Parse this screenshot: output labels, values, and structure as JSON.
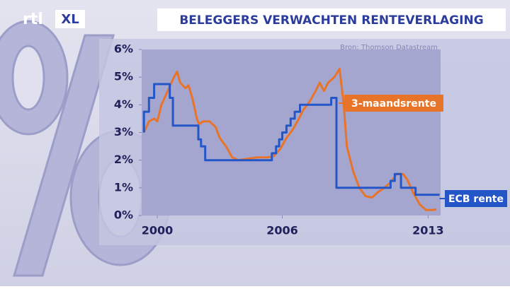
{
  "logo": {
    "left": "rtl",
    "right": "XL"
  },
  "chart_data": {
    "type": "line",
    "title": "BELEGGERS VERWACHTEN RENTEVERLAGING",
    "source": "Bron: Thomson Datastream",
    "xlim": [
      1999.25,
      2013.6
    ],
    "xticks": [
      2000,
      2006,
      2013
    ],
    "ylim": [
      0,
      6
    ],
    "yticks": [
      {
        "value": 0,
        "label": "0%"
      },
      {
        "value": 1,
        "label": "1%"
      },
      {
        "value": 2,
        "label": "2%"
      },
      {
        "value": 3,
        "label": "3%"
      },
      {
        "value": 4,
        "label": "4%"
      },
      {
        "value": 5,
        "label": "5%"
      },
      {
        "value": 6,
        "label": "6%"
      }
    ],
    "series": [
      {
        "name": "3-maandsrente",
        "color": "#e8742a",
        "x": [
          1999.36,
          1999.6,
          1999.85,
          2000.0,
          2000.2,
          2000.5,
          2000.8,
          2000.95,
          2001.1,
          2001.35,
          2001.5,
          2001.7,
          2001.9,
          2002.0,
          2002.2,
          2002.5,
          2002.8,
          2003.0,
          2003.3,
          2003.6,
          2003.9,
          2004.3,
          2004.8,
          2005.3,
          2005.6,
          2005.9,
          2006.2,
          2006.5,
          2006.8,
          2007.0,
          2007.3,
          2007.6,
          2007.8,
          2008.0,
          2008.2,
          2008.5,
          2008.75,
          2008.95,
          2009.1,
          2009.4,
          2009.7,
          2010.0,
          2010.3,
          2010.6,
          2010.9,
          2011.2,
          2011.5,
          2011.8,
          2012.0,
          2012.3,
          2012.6,
          2012.9,
          2013.2,
          2013.4
        ],
        "values": [
          3.0,
          3.4,
          3.5,
          3.4,
          4.0,
          4.5,
          5.0,
          5.2,
          4.8,
          4.6,
          4.7,
          4.2,
          3.5,
          3.3,
          3.4,
          3.4,
          3.2,
          2.8,
          2.5,
          2.1,
          2.0,
          2.05,
          2.1,
          2.1,
          2.15,
          2.4,
          2.8,
          3.1,
          3.5,
          3.8,
          4.1,
          4.5,
          4.8,
          4.5,
          4.8,
          5.0,
          5.3,
          4.0,
          2.5,
          1.6,
          1.0,
          0.7,
          0.65,
          0.85,
          1.0,
          1.2,
          1.5,
          1.5,
          1.3,
          0.8,
          0.4,
          0.2,
          0.2,
          0.22
        ]
      },
      {
        "name": "ECB rente",
        "color": "#2456c8",
        "x": [
          1999.36,
          1999.36,
          1999.6,
          1999.6,
          1999.85,
          1999.85,
          2000.6,
          2000.6,
          2000.75,
          2000.75,
          2001.97,
          2001.97,
          2002.1,
          2002.1,
          2002.3,
          2002.3,
          2005.5,
          2005.5,
          2005.7,
          2005.7,
          2005.85,
          2005.85,
          2006.0,
          2006.0,
          2006.2,
          2006.2,
          2006.4,
          2006.4,
          2006.6,
          2006.6,
          2006.85,
          2006.85,
          2008.35,
          2008.35,
          2008.6,
          2008.6,
          2011.2,
          2011.2,
          2011.4,
          2011.4,
          2011.7,
          2011.7,
          2012.4,
          2012.4,
          2013.55
        ],
        "values": [
          3.0,
          3.75,
          3.75,
          4.25,
          4.25,
          4.75,
          4.75,
          4.25,
          4.25,
          3.25,
          3.25,
          2.75,
          2.75,
          2.5,
          2.5,
          2.0,
          2.0,
          2.25,
          2.25,
          2.5,
          2.5,
          2.75,
          2.75,
          3.0,
          3.0,
          3.25,
          3.25,
          3.5,
          3.5,
          3.75,
          3.75,
          4.0,
          4.0,
          4.25,
          4.25,
          1.0,
          1.0,
          1.25,
          1.25,
          1.5,
          1.5,
          1.0,
          1.0,
          0.75,
          0.75
        ]
      }
    ]
  }
}
